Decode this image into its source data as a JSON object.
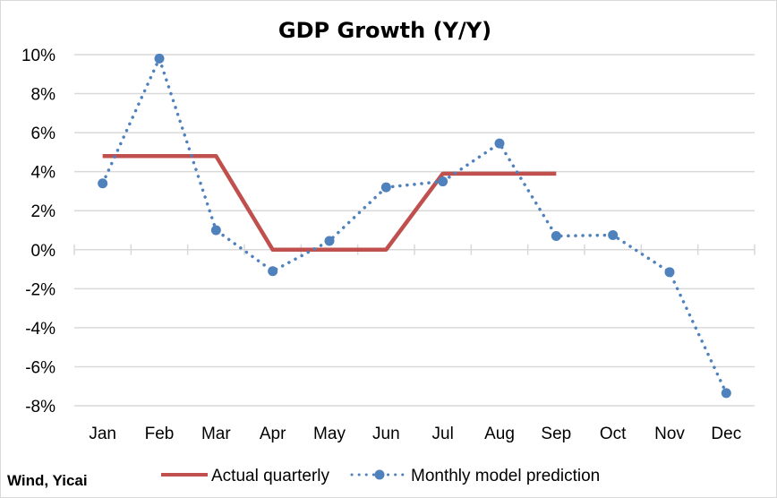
{
  "chart_data": {
    "type": "line",
    "title": "GDP Growth (Y/Y)",
    "xlabel": "",
    "ylabel": "",
    "categories": [
      "Jan",
      "Feb",
      "Mar",
      "Apr",
      "May",
      "Jun",
      "Jul",
      "Aug",
      "Sep",
      "Oct",
      "Nov",
      "Dec"
    ],
    "ylim": [
      -8,
      10
    ],
    "yticks": [
      10,
      8,
      6,
      4,
      2,
      0,
      -2,
      -4,
      -6,
      -8
    ],
    "ytick_labels": [
      "10%",
      "8%",
      "6%",
      "4%",
      "2%",
      "0%",
      "-2%",
      "-4%",
      "-6%",
      "-8%"
    ],
    "grid": true,
    "legend_position": "bottom",
    "series": [
      {
        "name": "Actual quarterly",
        "color": "#c0504d",
        "style": "solid",
        "values": [
          4.8,
          4.8,
          4.8,
          0.0,
          0.0,
          0.0,
          3.9,
          3.9,
          3.9,
          null,
          null,
          null
        ]
      },
      {
        "name": "Monthly model prediction",
        "color": "#4f81bd",
        "style": "dotted",
        "markers": true,
        "values": [
          3.4,
          9.8,
          1.0,
          -1.1,
          0.45,
          3.2,
          3.5,
          5.45,
          0.7,
          0.75,
          -1.15,
          -7.35
        ]
      }
    ],
    "source": "Wind, Yicai"
  }
}
